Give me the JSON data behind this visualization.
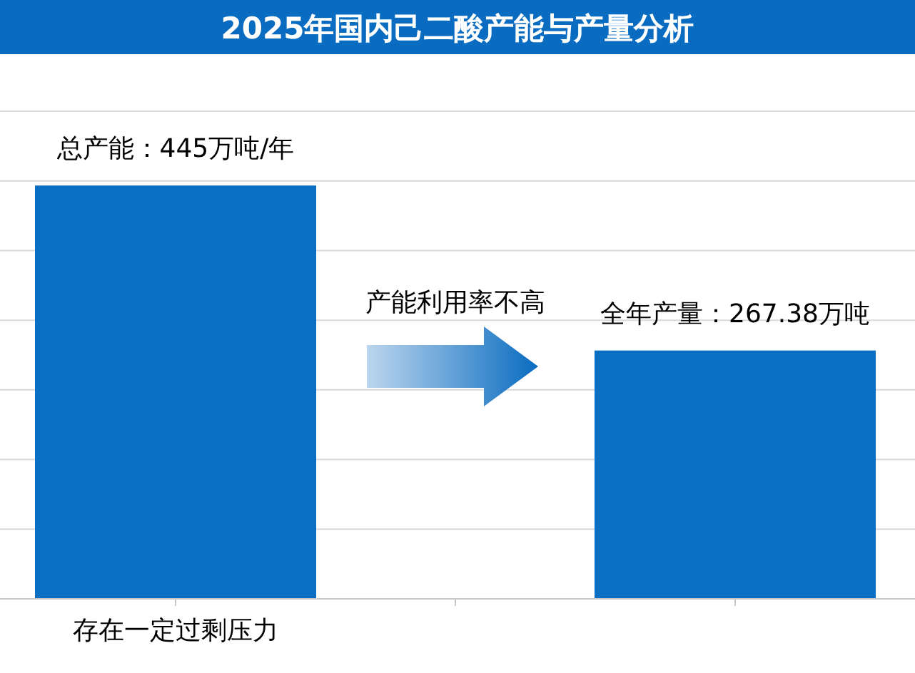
{
  "chart_data": {
    "type": "bar",
    "title": "2025年国内己二酸产能与产量分析",
    "categories": [
      "存在一定过剩压力",
      null
    ],
    "values": [
      445,
      267.38
    ],
    "value_labels": [
      "总产能：445万吨/年",
      "全年产量：267.38万吨"
    ],
    "color": "#0a6fc2",
    "ylim": [
      0,
      525
    ],
    "yticks": [
      {
        "value": 0,
        "label": null
      },
      {
        "value": 75,
        "label": null
      },
      {
        "value": 150,
        "label": null
      },
      {
        "value": 225,
        "label": null
      },
      {
        "value": 300,
        "label": null
      },
      {
        "value": 375,
        "label": null
      },
      {
        "value": 450,
        "label": null
      },
      {
        "value": 525,
        "label": null
      }
    ],
    "grid": "y",
    "annotations": [
      "产能利用率不高"
    ]
  }
}
